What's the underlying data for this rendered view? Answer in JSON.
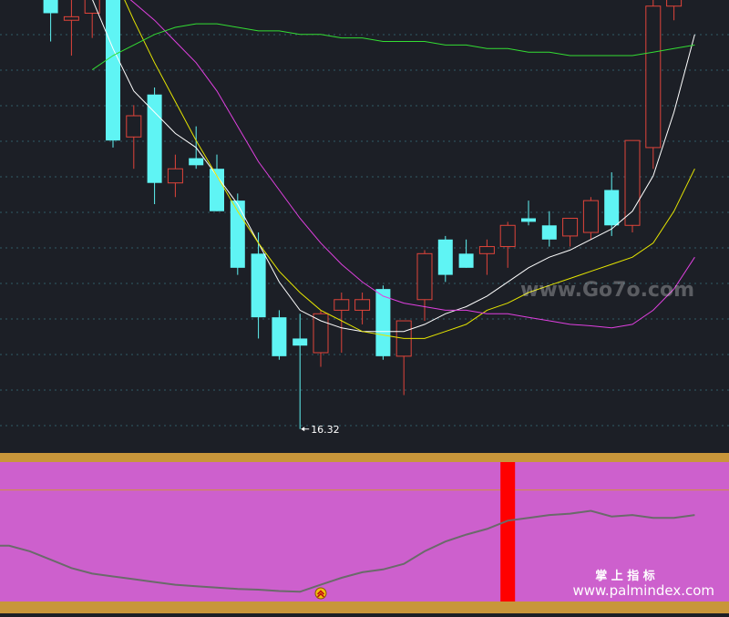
{
  "chart_data": [
    {
      "type": "candlestick",
      "title": "",
      "grid": true,
      "xlim": [
        0,
        33
      ],
      "ylim": [
        15.0,
        25.0
      ],
      "low_annotation": {
        "index": 14,
        "value": 16.32,
        "label": "16.32"
      },
      "colors": {
        "up": "#e0443a",
        "down": "#5ff4f4",
        "background": "#1c1f26",
        "grid": "#2f5b66"
      },
      "candles": [
        {
          "o": 24.3,
          "h": 24.8,
          "l": 23.9,
          "c": 24.5
        },
        {
          "o": 24.5,
          "h": 24.55,
          "l": 22.7,
          "c": 22.7
        },
        {
          "o": 22.6,
          "h": 22.6,
          "l": 21.8,
          "c": 22.2
        },
        {
          "o": 22.1,
          "h": 22.55,
          "l": 21.6,
          "c": 22.15
        },
        {
          "o": 22.2,
          "h": 22.8,
          "l": 21.85,
          "c": 22.55
        },
        {
          "o": 22.8,
          "h": 22.85,
          "l": 20.3,
          "c": 20.4
        },
        {
          "o": 20.45,
          "h": 20.9,
          "l": 20.0,
          "c": 20.75
        },
        {
          "o": 21.05,
          "h": 21.15,
          "l": 19.5,
          "c": 19.8
        },
        {
          "o": 19.8,
          "h": 20.2,
          "l": 19.6,
          "c": 20.0
        },
        {
          "o": 20.15,
          "h": 20.6,
          "l": 20.0,
          "c": 20.05
        },
        {
          "o": 20.0,
          "h": 20.2,
          "l": 19.4,
          "c": 19.4
        },
        {
          "o": 19.55,
          "h": 19.65,
          "l": 18.5,
          "c": 18.6
        },
        {
          "o": 18.8,
          "h": 19.1,
          "l": 17.6,
          "c": 17.9
        },
        {
          "o": 17.9,
          "h": 18.0,
          "l": 17.3,
          "c": 17.35
        },
        {
          "o": 17.6,
          "h": 17.95,
          "l": 16.32,
          "c": 17.5
        },
        {
          "o": 17.4,
          "h": 18.0,
          "l": 17.2,
          "c": 17.95
        },
        {
          "o": 18.0,
          "h": 18.25,
          "l": 17.4,
          "c": 18.15
        },
        {
          "o": 18.0,
          "h": 18.25,
          "l": 17.8,
          "c": 18.15
        },
        {
          "o": 18.3,
          "h": 18.35,
          "l": 17.3,
          "c": 17.35
        },
        {
          "o": 17.35,
          "h": 17.85,
          "l": 16.8,
          "c": 17.85
        },
        {
          "o": 18.15,
          "h": 18.85,
          "l": 17.85,
          "c": 18.8
        },
        {
          "o": 19.0,
          "h": 19.05,
          "l": 18.4,
          "c": 18.5
        },
        {
          "o": 18.8,
          "h": 19.0,
          "l": 18.6,
          "c": 18.6
        },
        {
          "o": 18.8,
          "h": 19.0,
          "l": 18.5,
          "c": 18.9
        },
        {
          "o": 18.9,
          "h": 19.25,
          "l": 18.6,
          "c": 19.2
        },
        {
          "o": 19.3,
          "h": 19.55,
          "l": 19.2,
          "c": 19.25
        },
        {
          "o": 19.2,
          "h": 19.4,
          "l": 18.9,
          "c": 19.0
        },
        {
          "o": 19.05,
          "h": 19.3,
          "l": 18.9,
          "c": 19.3
        },
        {
          "o": 19.1,
          "h": 19.6,
          "l": 19.0,
          "c": 19.55
        },
        {
          "o": 19.7,
          "h": 19.95,
          "l": 19.05,
          "c": 19.2
        },
        {
          "o": 19.2,
          "h": 20.4,
          "l": 19.1,
          "c": 20.4
        },
        {
          "o": 20.3,
          "h": 23.0,
          "l": 20.0,
          "c": 22.3
        },
        {
          "o": 22.3,
          "h": 24.5,
          "l": 22.1,
          "c": 22.8
        },
        {
          "o": 24.6,
          "h": 26.3,
          "l": 23.7,
          "c": 25.5
        }
      ],
      "series": [
        {
          "color": "#ffffff",
          "values": [
            24.8,
            24.5,
            23.9,
            23.1,
            22.4,
            21.7,
            21.1,
            20.8,
            20.5,
            20.3,
            19.9,
            19.5,
            18.95,
            18.4,
            18.0,
            17.85,
            17.75,
            17.7,
            17.7,
            17.7,
            17.8,
            17.95,
            18.05,
            18.2,
            18.4,
            18.6,
            18.75,
            18.85,
            19.0,
            19.15,
            19.4,
            19.9,
            20.8,
            21.9
          ]
        },
        {
          "color": "#e6e600",
          "values": [
            null,
            24.4,
            24.2,
            23.8,
            23.35,
            22.75,
            22.1,
            21.5,
            20.95,
            20.4,
            19.9,
            19.4,
            18.95,
            18.55,
            18.25,
            18.0,
            17.85,
            17.7,
            17.65,
            17.6,
            17.6,
            17.7,
            17.8,
            18.0,
            18.1,
            18.25,
            18.35,
            18.45,
            18.55,
            18.65,
            18.75,
            18.95,
            19.4,
            20.0
          ]
        },
        {
          "color": "#e040e0",
          "values": [
            23.1,
            23.1,
            23.05,
            23.0,
            22.85,
            22.6,
            22.35,
            22.1,
            21.8,
            21.5,
            21.1,
            20.6,
            20.1,
            19.7,
            19.3,
            18.95,
            18.65,
            18.4,
            18.2,
            18.1,
            18.05,
            18.0,
            18.0,
            17.95,
            17.95,
            17.9,
            17.85,
            17.8,
            17.78,
            17.75,
            17.8,
            18.0,
            18.3,
            18.75
          ]
        },
        {
          "color": "#33dd33",
          "values": [
            null,
            null,
            null,
            null,
            21.4,
            21.6,
            21.75,
            21.9,
            22.0,
            22.05,
            22.05,
            22.0,
            21.95,
            21.95,
            21.9,
            21.9,
            21.85,
            21.85,
            21.8,
            21.8,
            21.8,
            21.75,
            21.75,
            21.7,
            21.7,
            21.65,
            21.65,
            21.6,
            21.6,
            21.6,
            21.6,
            21.65,
            21.7,
            21.75
          ]
        }
      ]
    },
    {
      "type": "line",
      "title": "",
      "ylim": [
        0,
        100
      ],
      "reference_line": 80,
      "signal_bar_index": 24,
      "buy_marker_index": 15,
      "colors": {
        "background": "#cd60cd",
        "band": "#c8963a",
        "line": "#6a6a6a",
        "signal": "#ff0000",
        "reference": "#d09040"
      },
      "series": [
        {
          "values": [
            40,
            36,
            30,
            24,
            20,
            18,
            16,
            14,
            12,
            11,
            10,
            9,
            8.5,
            7.5,
            7,
            12,
            17,
            21,
            23,
            27,
            36,
            43,
            48,
            52,
            58,
            60,
            62,
            63,
            65,
            61,
            62,
            60,
            60,
            62
          ]
        }
      ]
    }
  ],
  "watermarks": {
    "cn": "掌 上 指 标",
    "url": "www.palmindex.com",
    "top": "www.Go7o.com"
  }
}
